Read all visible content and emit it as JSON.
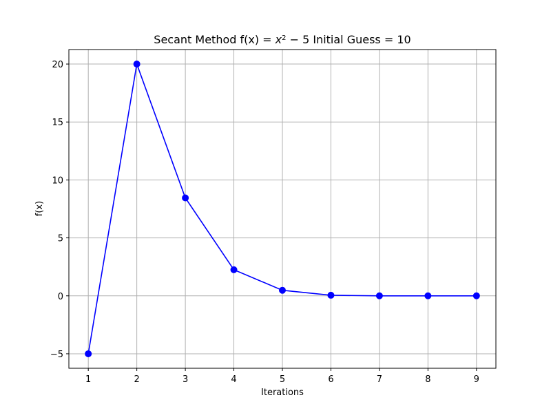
{
  "chart_data": {
    "type": "line",
    "title": {
      "prefix": "Secant Method f(x) = ",
      "var": "x",
      "exp": "2",
      "suffix": " − 5 Initial Guess = 10"
    },
    "xlabel": "Iterations",
    "ylabel": "f(x)",
    "x": [
      1,
      2,
      3,
      4,
      5,
      6,
      7,
      8,
      9
    ],
    "series": [
      {
        "values": [
          -5,
          20,
          8.45,
          2.25,
          0.48,
          0.05,
          0.0,
          0.0,
          0.0
        ],
        "color": "#0000ff",
        "marker": "circle"
      }
    ],
    "xlim": [
      0.6,
      9.4
    ],
    "ylim": [
      -6.25,
      21.25
    ],
    "xticks": [
      "1",
      "2",
      "3",
      "4",
      "5",
      "6",
      "7",
      "8",
      "9"
    ],
    "yticks": [
      "−5",
      "0",
      "5",
      "10",
      "15",
      "20"
    ],
    "grid": true
  }
}
